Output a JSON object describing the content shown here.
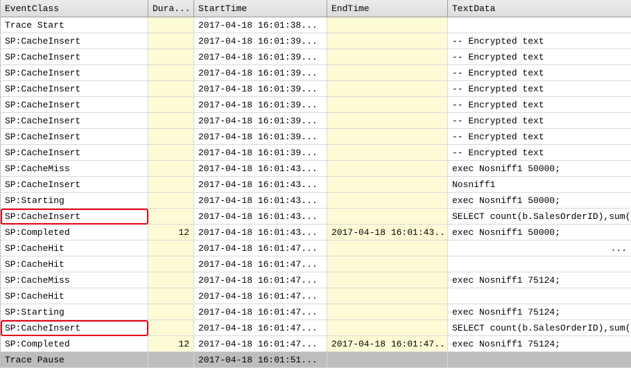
{
  "columns": [
    "EventClass",
    "Dura...",
    "StartTime",
    "EndTime",
    "TextData"
  ],
  "rows": [
    {
      "ec": "Trace Start",
      "du": "",
      "st": "2017-04-18 16:01:38...",
      "et": "",
      "td": "",
      "hl": false,
      "sel": false
    },
    {
      "ec": "SP:CacheInsert",
      "du": "",
      "st": "2017-04-18 16:01:39...",
      "et": "",
      "td": "-- Encrypted text",
      "hl": false,
      "sel": false
    },
    {
      "ec": "SP:CacheInsert",
      "du": "",
      "st": "2017-04-18 16:01:39...",
      "et": "",
      "td": "-- Encrypted text",
      "hl": false,
      "sel": false
    },
    {
      "ec": "SP:CacheInsert",
      "du": "",
      "st": "2017-04-18 16:01:39...",
      "et": "",
      "td": "-- Encrypted text",
      "hl": false,
      "sel": false
    },
    {
      "ec": "SP:CacheInsert",
      "du": "",
      "st": "2017-04-18 16:01:39...",
      "et": "",
      "td": "-- Encrypted text",
      "hl": false,
      "sel": false
    },
    {
      "ec": "SP:CacheInsert",
      "du": "",
      "st": "2017-04-18 16:01:39...",
      "et": "",
      "td": "-- Encrypted text",
      "hl": false,
      "sel": false
    },
    {
      "ec": "SP:CacheInsert",
      "du": "",
      "st": "2017-04-18 16:01:39...",
      "et": "",
      "td": "-- Encrypted text",
      "hl": false,
      "sel": false
    },
    {
      "ec": "SP:CacheInsert",
      "du": "",
      "st": "2017-04-18 16:01:39...",
      "et": "",
      "td": "-- Encrypted text",
      "hl": false,
      "sel": false
    },
    {
      "ec": "SP:CacheInsert",
      "du": "",
      "st": "2017-04-18 16:01:39...",
      "et": "",
      "td": "-- Encrypted text",
      "hl": false,
      "sel": false
    },
    {
      "ec": "SP:CacheMiss",
      "du": "",
      "st": "2017-04-18 16:01:43...",
      "et": "",
      "td": "exec Nosniff1 50000;",
      "hl": false,
      "sel": false
    },
    {
      "ec": "SP:CacheInsert",
      "du": "",
      "st": "2017-04-18 16:01:43...",
      "et": "",
      "td": "Nosniff1",
      "hl": false,
      "sel": false
    },
    {
      "ec": "SP:Starting",
      "du": "",
      "st": "2017-04-18 16:01:43...",
      "et": "",
      "td": "exec Nosniff1 50000;",
      "hl": false,
      "sel": false
    },
    {
      "ec": "SP:CacheInsert",
      "du": "",
      "st": "2017-04-18 16:01:43...",
      "et": "",
      "td": "SELECT count(b.SalesOrderID),sum(p....",
      "hl": true,
      "sel": false
    },
    {
      "ec": "SP:Completed",
      "du": "12",
      "st": "2017-04-18 16:01:43...",
      "et": "2017-04-18 16:01:43...",
      "td": "exec Nosniff1 50000;",
      "hl": false,
      "sel": false
    },
    {
      "ec": "SP:CacheHit",
      "du": "",
      "st": "2017-04-18 16:01:47...",
      "et": "",
      "td": "...",
      "hl": false,
      "sel": false,
      "tdr": true
    },
    {
      "ec": "SP:CacheHit",
      "du": "",
      "st": "2017-04-18 16:01:47...",
      "et": "",
      "td": "",
      "hl": false,
      "sel": false
    },
    {
      "ec": "SP:CacheMiss",
      "du": "",
      "st": "2017-04-18 16:01:47...",
      "et": "",
      "td": "exec Nosniff1 75124;",
      "hl": false,
      "sel": false
    },
    {
      "ec": "SP:CacheHit",
      "du": "",
      "st": "2017-04-18 16:01:47...",
      "et": "",
      "td": "",
      "hl": false,
      "sel": false
    },
    {
      "ec": "SP:Starting",
      "du": "",
      "st": "2017-04-18 16:01:47...",
      "et": "",
      "td": "exec Nosniff1 75124;",
      "hl": false,
      "sel": false
    },
    {
      "ec": "SP:CacheInsert",
      "du": "",
      "st": "2017-04-18 16:01:47...",
      "et": "",
      "td": "SELECT count(b.SalesOrderID),sum(p....",
      "hl": true,
      "sel": false
    },
    {
      "ec": "SP:Completed",
      "du": "12",
      "st": "2017-04-18 16:01:47...",
      "et": "2017-04-18 16:01:47...",
      "td": "exec Nosniff1 75124;",
      "hl": false,
      "sel": false
    },
    {
      "ec": "Trace Pause",
      "du": "",
      "st": "2017-04-18 16:01:51...",
      "et": "",
      "td": "",
      "hl": false,
      "sel": true
    }
  ]
}
